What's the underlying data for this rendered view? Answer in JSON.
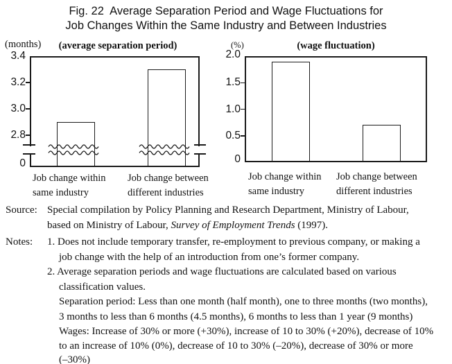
{
  "figure": {
    "title_line1": "Fig. 22  Average Separation Period and Wage Fluctuations for",
    "title_line2": "Job Changes Within the Same Industry and Between Industries"
  },
  "chart_data": [
    {
      "type": "bar",
      "title": "(average separation period)",
      "unit_label": "(months)",
      "categories": [
        [
          "Job change within",
          "same industry"
        ],
        [
          "Job change between",
          "different industries"
        ]
      ],
      "values": [
        2.9,
        3.3
      ],
      "ytick_labels": [
        "3.4",
        "3.2",
        "3.0",
        "2.8",
        "0"
      ],
      "ylim": [
        2.8,
        3.4
      ],
      "baseline": 0,
      "axis_break": true,
      "grid": false,
      "bar_fill": "#ffffff",
      "bar_border": "#1a1a1a"
    },
    {
      "type": "bar",
      "title": "(wage fluctuation)",
      "unit_label": "(%)",
      "categories": [
        [
          "Job change within",
          "same industry"
        ],
        [
          "Job change between",
          "different industries"
        ]
      ],
      "values": [
        1.9,
        0.7
      ],
      "ytick_labels": [
        "2.0",
        "1.5",
        "1.0",
        "0.5",
        "0"
      ],
      "ylim": [
        0,
        2.0
      ],
      "axis_break": false,
      "grid": false,
      "bar_fill": "#ffffff",
      "bar_border": "#1a1a1a"
    }
  ],
  "source": {
    "label": "Source:",
    "line1": "Special compilation by Policy Planning and Research Department, Ministry of Labour,",
    "line2_pre": "based on Ministry of Labour, ",
    "line2_italic": "Survey of Employment Trends",
    "line2_post": " (1997)."
  },
  "notes": {
    "label": "Notes:",
    "lines": [
      "1. Does not include temporary transfer, re-employment to previous company, or making a",
      "job change with the help of an introduction from one’s former company.",
      "2. Average separation periods and wage fluctuations are calculated based on various",
      "classification values.",
      "Separation period: Less than one month (half month), one to three months (two months),",
      "3 months to less than 6 months (4.5 months), 6 months to less than 1 year (9 months)",
      "Wages: Increase of 30% or more (+30%), increase of 10 to 30% (+20%), decrease of 10%",
      "to an increase of 10% (0%), decrease of 10 to 30% (–20%), decrease of 30% or more",
      "(–30%)"
    ]
  }
}
